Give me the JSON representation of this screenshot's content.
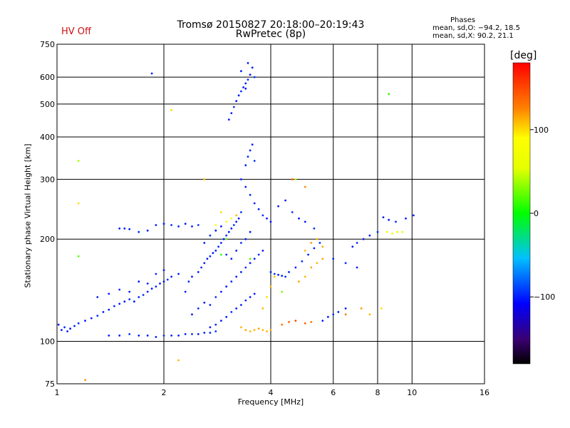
{
  "chart_data": {
    "type": "scatter",
    "title": "Tromsø 20150827 20:18:00–20:19:43",
    "subtitle": "RwPretec (8p)",
    "status": "HV Off",
    "xlabel": "Frequency [MHz]",
    "ylabel": "Stationary phase Virtual Height [km]",
    "x_scale": "log",
    "y_scale": "log",
    "xlim": [
      1,
      16
    ],
    "ylim": [
      75,
      750
    ],
    "x_ticks": [
      1,
      2,
      4,
      6,
      8,
      10,
      16
    ],
    "x_tick_labels": [
      "1",
      "2",
      "4",
      "6",
      "8",
      "10",
      "16"
    ],
    "y_ticks": [
      75,
      100,
      200,
      300,
      400,
      500,
      600,
      750
    ],
    "y_tick_labels": [
      "75",
      "100",
      "200",
      "300",
      "400",
      "500",
      "600",
      "750"
    ],
    "grid": true,
    "stats": {
      "heading": "Phases",
      "line1": "mean, sd,O: −94.2, 18.5",
      "line2": "mean, sd,X:  90.2, 21.1"
    },
    "colorbar": {
      "label": "[deg]",
      "range": [
        -180,
        180
      ],
      "tick_values": [
        100,
        0,
        -100
      ],
      "tick_labels": [
        "100",
        "0",
        "−100"
      ],
      "colormap": "rainbow"
    },
    "series": [
      {
        "points": [
          [
            1.01,
            112,
            -100
          ],
          [
            1.03,
            108,
            -100
          ],
          [
            1.05,
            110,
            -95
          ],
          [
            1.07,
            107,
            -100
          ],
          [
            1.09,
            109,
            -100
          ],
          [
            1.12,
            111,
            -100
          ],
          [
            1.15,
            113,
            -95
          ],
          [
            1.2,
            115,
            -100
          ],
          [
            1.25,
            117,
            -100
          ],
          [
            1.3,
            119,
            -95
          ],
          [
            1.35,
            122,
            -100
          ],
          [
            1.4,
            124,
            -100
          ],
          [
            1.45,
            127,
            -95
          ],
          [
            1.5,
            129,
            -100
          ],
          [
            1.55,
            131,
            -100
          ],
          [
            1.6,
            133,
            -95
          ],
          [
            1.65,
            131,
            -100
          ],
          [
            1.7,
            135,
            -100
          ],
          [
            1.75,
            137,
            -95
          ],
          [
            1.8,
            140,
            -100
          ],
          [
            1.85,
            143,
            -100
          ],
          [
            1.9,
            145,
            -95
          ],
          [
            1.95,
            148,
            -100
          ],
          [
            2.0,
            150,
            -100
          ],
          [
            2.05,
            152,
            -95
          ],
          [
            2.1,
            155,
            -100
          ],
          [
            2.2,
            158,
            -100
          ],
          [
            1.3,
            135,
            -100
          ],
          [
            1.4,
            138,
            -100
          ],
          [
            1.5,
            142,
            -95
          ],
          [
            1.6,
            140,
            -100
          ],
          [
            1.7,
            150,
            -100
          ],
          [
            1.8,
            148,
            -100
          ],
          [
            1.9,
            158,
            -95
          ],
          [
            2.0,
            162,
            -100
          ],
          [
            1.4,
            104,
            -100
          ],
          [
            1.5,
            104,
            -100
          ],
          [
            1.6,
            105,
            -95
          ],
          [
            1.7,
            104,
            -100
          ],
          [
            1.8,
            104,
            -100
          ],
          [
            1.9,
            103,
            -100
          ],
          [
            2.0,
            104,
            -95
          ],
          [
            2.1,
            104,
            -100
          ],
          [
            2.2,
            104,
            -100
          ],
          [
            2.3,
            105,
            -100
          ],
          [
            2.4,
            105,
            -95
          ],
          [
            2.5,
            105,
            -100
          ],
          [
            2.6,
            106,
            -100
          ],
          [
            2.7,
            106,
            -100
          ],
          [
            2.8,
            107,
            -95
          ],
          [
            1.5,
            215,
            -100
          ],
          [
            1.55,
            215,
            -100
          ],
          [
            1.6,
            214,
            -100
          ],
          [
            1.7,
            210,
            -95
          ],
          [
            1.8,
            212,
            -100
          ],
          [
            1.9,
            220,
            -100
          ],
          [
            2.0,
            222,
            -100
          ],
          [
            2.1,
            220,
            -95
          ],
          [
            2.2,
            218,
            -100
          ],
          [
            2.3,
            222,
            -100
          ],
          [
            2.4,
            218,
            -100
          ],
          [
            2.5,
            220,
            -95
          ],
          [
            2.3,
            140,
            -100
          ],
          [
            2.35,
            150,
            -95
          ],
          [
            2.4,
            155,
            -100
          ],
          [
            2.5,
            160,
            -100
          ],
          [
            2.55,
            165,
            -95
          ],
          [
            2.6,
            170,
            -100
          ],
          [
            2.65,
            175,
            -100
          ],
          [
            2.7,
            178,
            -95
          ],
          [
            2.75,
            182,
            -100
          ],
          [
            2.8,
            185,
            -100
          ],
          [
            2.85,
            190,
            -95
          ],
          [
            2.9,
            195,
            -100
          ],
          [
            2.95,
            200,
            -100
          ],
          [
            3.0,
            205,
            -95
          ],
          [
            3.05,
            210,
            -100
          ],
          [
            3.1,
            215,
            -100
          ],
          [
            3.15,
            220,
            -95
          ],
          [
            3.2,
            225,
            -100
          ],
          [
            3.25,
            230,
            -100
          ],
          [
            3.3,
            240,
            -95
          ],
          [
            2.4,
            120,
            -100
          ],
          [
            2.5,
            125,
            -95
          ],
          [
            2.6,
            130,
            -100
          ],
          [
            2.7,
            128,
            -100
          ],
          [
            2.8,
            135,
            -95
          ],
          [
            2.9,
            140,
            -100
          ],
          [
            3.0,
            145,
            -100
          ],
          [
            3.1,
            150,
            -95
          ],
          [
            3.2,
            155,
            -100
          ],
          [
            3.3,
            160,
            -100
          ],
          [
            3.4,
            165,
            -95
          ],
          [
            3.5,
            170,
            -100
          ],
          [
            3.6,
            175,
            -100
          ],
          [
            3.7,
            180,
            -95
          ],
          [
            3.8,
            185,
            -100
          ],
          [
            2.6,
            195,
            -100
          ],
          [
            2.7,
            205,
            -95
          ],
          [
            2.8,
            212,
            -100
          ],
          [
            2.9,
            218,
            -100
          ],
          [
            3.0,
            180,
            -95
          ],
          [
            3.1,
            175,
            -100
          ],
          [
            3.2,
            185,
            -100
          ],
          [
            3.3,
            195,
            -95
          ],
          [
            3.4,
            200,
            -100
          ],
          [
            3.5,
            210,
            -100
          ],
          [
            2.7,
            110,
            -100
          ],
          [
            2.8,
            112,
            -95
          ],
          [
            2.9,
            115,
            -100
          ],
          [
            3.0,
            118,
            -100
          ],
          [
            3.1,
            122,
            -95
          ],
          [
            3.2,
            125,
            -100
          ],
          [
            3.3,
            128,
            -100
          ],
          [
            3.4,
            132,
            -95
          ],
          [
            3.5,
            135,
            -100
          ],
          [
            3.6,
            138,
            -100
          ],
          [
            3.05,
            450,
            -100
          ],
          [
            3.1,
            470,
            -100
          ],
          [
            3.15,
            490,
            -95
          ],
          [
            3.2,
            510,
            -100
          ],
          [
            3.25,
            530,
            -100
          ],
          [
            3.3,
            545,
            -95
          ],
          [
            3.35,
            560,
            -100
          ],
          [
            3.4,
            575,
            -100
          ],
          [
            3.45,
            590,
            -95
          ],
          [
            3.5,
            610,
            -100
          ],
          [
            3.45,
            660,
            -100
          ],
          [
            3.55,
            640,
            -100
          ],
          [
            3.6,
            600,
            -95
          ],
          [
            3.3,
            625,
            -100
          ],
          [
            3.4,
            555,
            -100
          ],
          [
            1.85,
            615,
            -100
          ],
          [
            3.4,
            330,
            -100
          ],
          [
            3.45,
            350,
            -95
          ],
          [
            3.5,
            365,
            -100
          ],
          [
            3.55,
            380,
            -100
          ],
          [
            3.6,
            340,
            -95
          ],
          [
            3.3,
            300,
            -100
          ],
          [
            3.4,
            285,
            -100
          ],
          [
            3.5,
            270,
            -95
          ],
          [
            3.6,
            255,
            -100
          ],
          [
            3.7,
            245,
            -100
          ],
          [
            3.8,
            235,
            -95
          ],
          [
            3.9,
            230,
            -100
          ],
          [
            4.0,
            225,
            -100
          ],
          [
            4.0,
            160,
            -100
          ],
          [
            4.1,
            158,
            -95
          ],
          [
            4.2,
            157,
            -100
          ],
          [
            4.3,
            156,
            -100
          ],
          [
            4.4,
            155,
            -95
          ],
          [
            4.5,
            160,
            -100
          ],
          [
            4.7,
            165,
            -100
          ],
          [
            4.9,
            172,
            -95
          ],
          [
            5.1,
            180,
            -100
          ],
          [
            5.3,
            188,
            -100
          ],
          [
            5.5,
            195,
            -95
          ],
          [
            4.2,
            250,
            -100
          ],
          [
            4.4,
            260,
            -100
          ],
          [
            4.6,
            240,
            -95
          ],
          [
            4.8,
            230,
            -100
          ],
          [
            5.0,
            225,
            -100
          ],
          [
            5.3,
            215,
            -95
          ],
          [
            5.6,
            115,
            -100
          ],
          [
            5.8,
            118,
            -100
          ],
          [
            6.0,
            120,
            -95
          ],
          [
            6.2,
            122,
            -100
          ],
          [
            6.5,
            125,
            -100
          ],
          [
            6.8,
            190,
            -100
          ],
          [
            7.0,
            195,
            -95
          ],
          [
            7.3,
            200,
            -100
          ],
          [
            7.6,
            205,
            -100
          ],
          [
            8.0,
            210,
            -95
          ],
          [
            8.3,
            232,
            -100
          ],
          [
            8.6,
            228,
            -100
          ],
          [
            9.0,
            225,
            -95
          ],
          [
            9.6,
            230,
            -100
          ],
          [
            10.1,
            235,
            -100
          ],
          [
            6.0,
            175,
            -100
          ],
          [
            6.5,
            170,
            -95
          ],
          [
            7.0,
            165,
            -100
          ],
          [
            3.3,
            110,
            110
          ],
          [
            3.4,
            108,
            115
          ],
          [
            3.5,
            107,
            110
          ],
          [
            3.6,
            108,
            110
          ],
          [
            3.7,
            109,
            115
          ],
          [
            3.8,
            108,
            110
          ],
          [
            3.9,
            107,
            110
          ],
          [
            4.0,
            108,
            115
          ],
          [
            4.3,
            112,
            130
          ],
          [
            4.5,
            114,
            140
          ],
          [
            4.7,
            115,
            150
          ],
          [
            5.0,
            113,
            140
          ],
          [
            5.2,
            114,
            130
          ],
          [
            3.8,
            125,
            110
          ],
          [
            3.9,
            135,
            100
          ],
          [
            4.0,
            145,
            110
          ],
          [
            4.1,
            155,
            105
          ],
          [
            4.8,
            150,
            115
          ],
          [
            5.0,
            155,
            110
          ],
          [
            5.2,
            165,
            115
          ],
          [
            5.4,
            170,
            110
          ],
          [
            5.6,
            175,
            115
          ],
          [
            5.0,
            185,
            110
          ],
          [
            5.2,
            195,
            120
          ],
          [
            5.4,
            200,
            110
          ],
          [
            5.6,
            190,
            115
          ],
          [
            5.0,
            285,
            125
          ],
          [
            4.6,
            300,
            140
          ],
          [
            8.5,
            210,
            70
          ],
          [
            8.8,
            208,
            60
          ],
          [
            9.1,
            210,
            65
          ],
          [
            9.4,
            210,
            60
          ],
          [
            6.5,
            120,
            130
          ],
          [
            7.2,
            125,
            120
          ],
          [
            7.6,
            120,
            110
          ],
          [
            8.2,
            125,
            100
          ],
          [
            3.0,
            225,
            90
          ],
          [
            3.1,
            230,
            80
          ],
          [
            2.8,
            220,
            85
          ],
          [
            2.9,
            240,
            100
          ],
          [
            3.2,
            235,
            110
          ],
          [
            2.1,
            480,
            100
          ],
          [
            1.15,
            255,
            100
          ],
          [
            2.6,
            300,
            110
          ],
          [
            1.15,
            340,
            40
          ],
          [
            1.15,
            178,
            20
          ],
          [
            4.7,
            300,
            40
          ],
          [
            8.6,
            535,
            10
          ],
          [
            3.0,
            200,
            20
          ],
          [
            2.9,
            180,
            10
          ],
          [
            3.5,
            175,
            20
          ],
          [
            4.3,
            140,
            30
          ],
          [
            2.2,
            88,
            110
          ],
          [
            1.2,
            77,
            120
          ]
        ]
      }
    ]
  }
}
